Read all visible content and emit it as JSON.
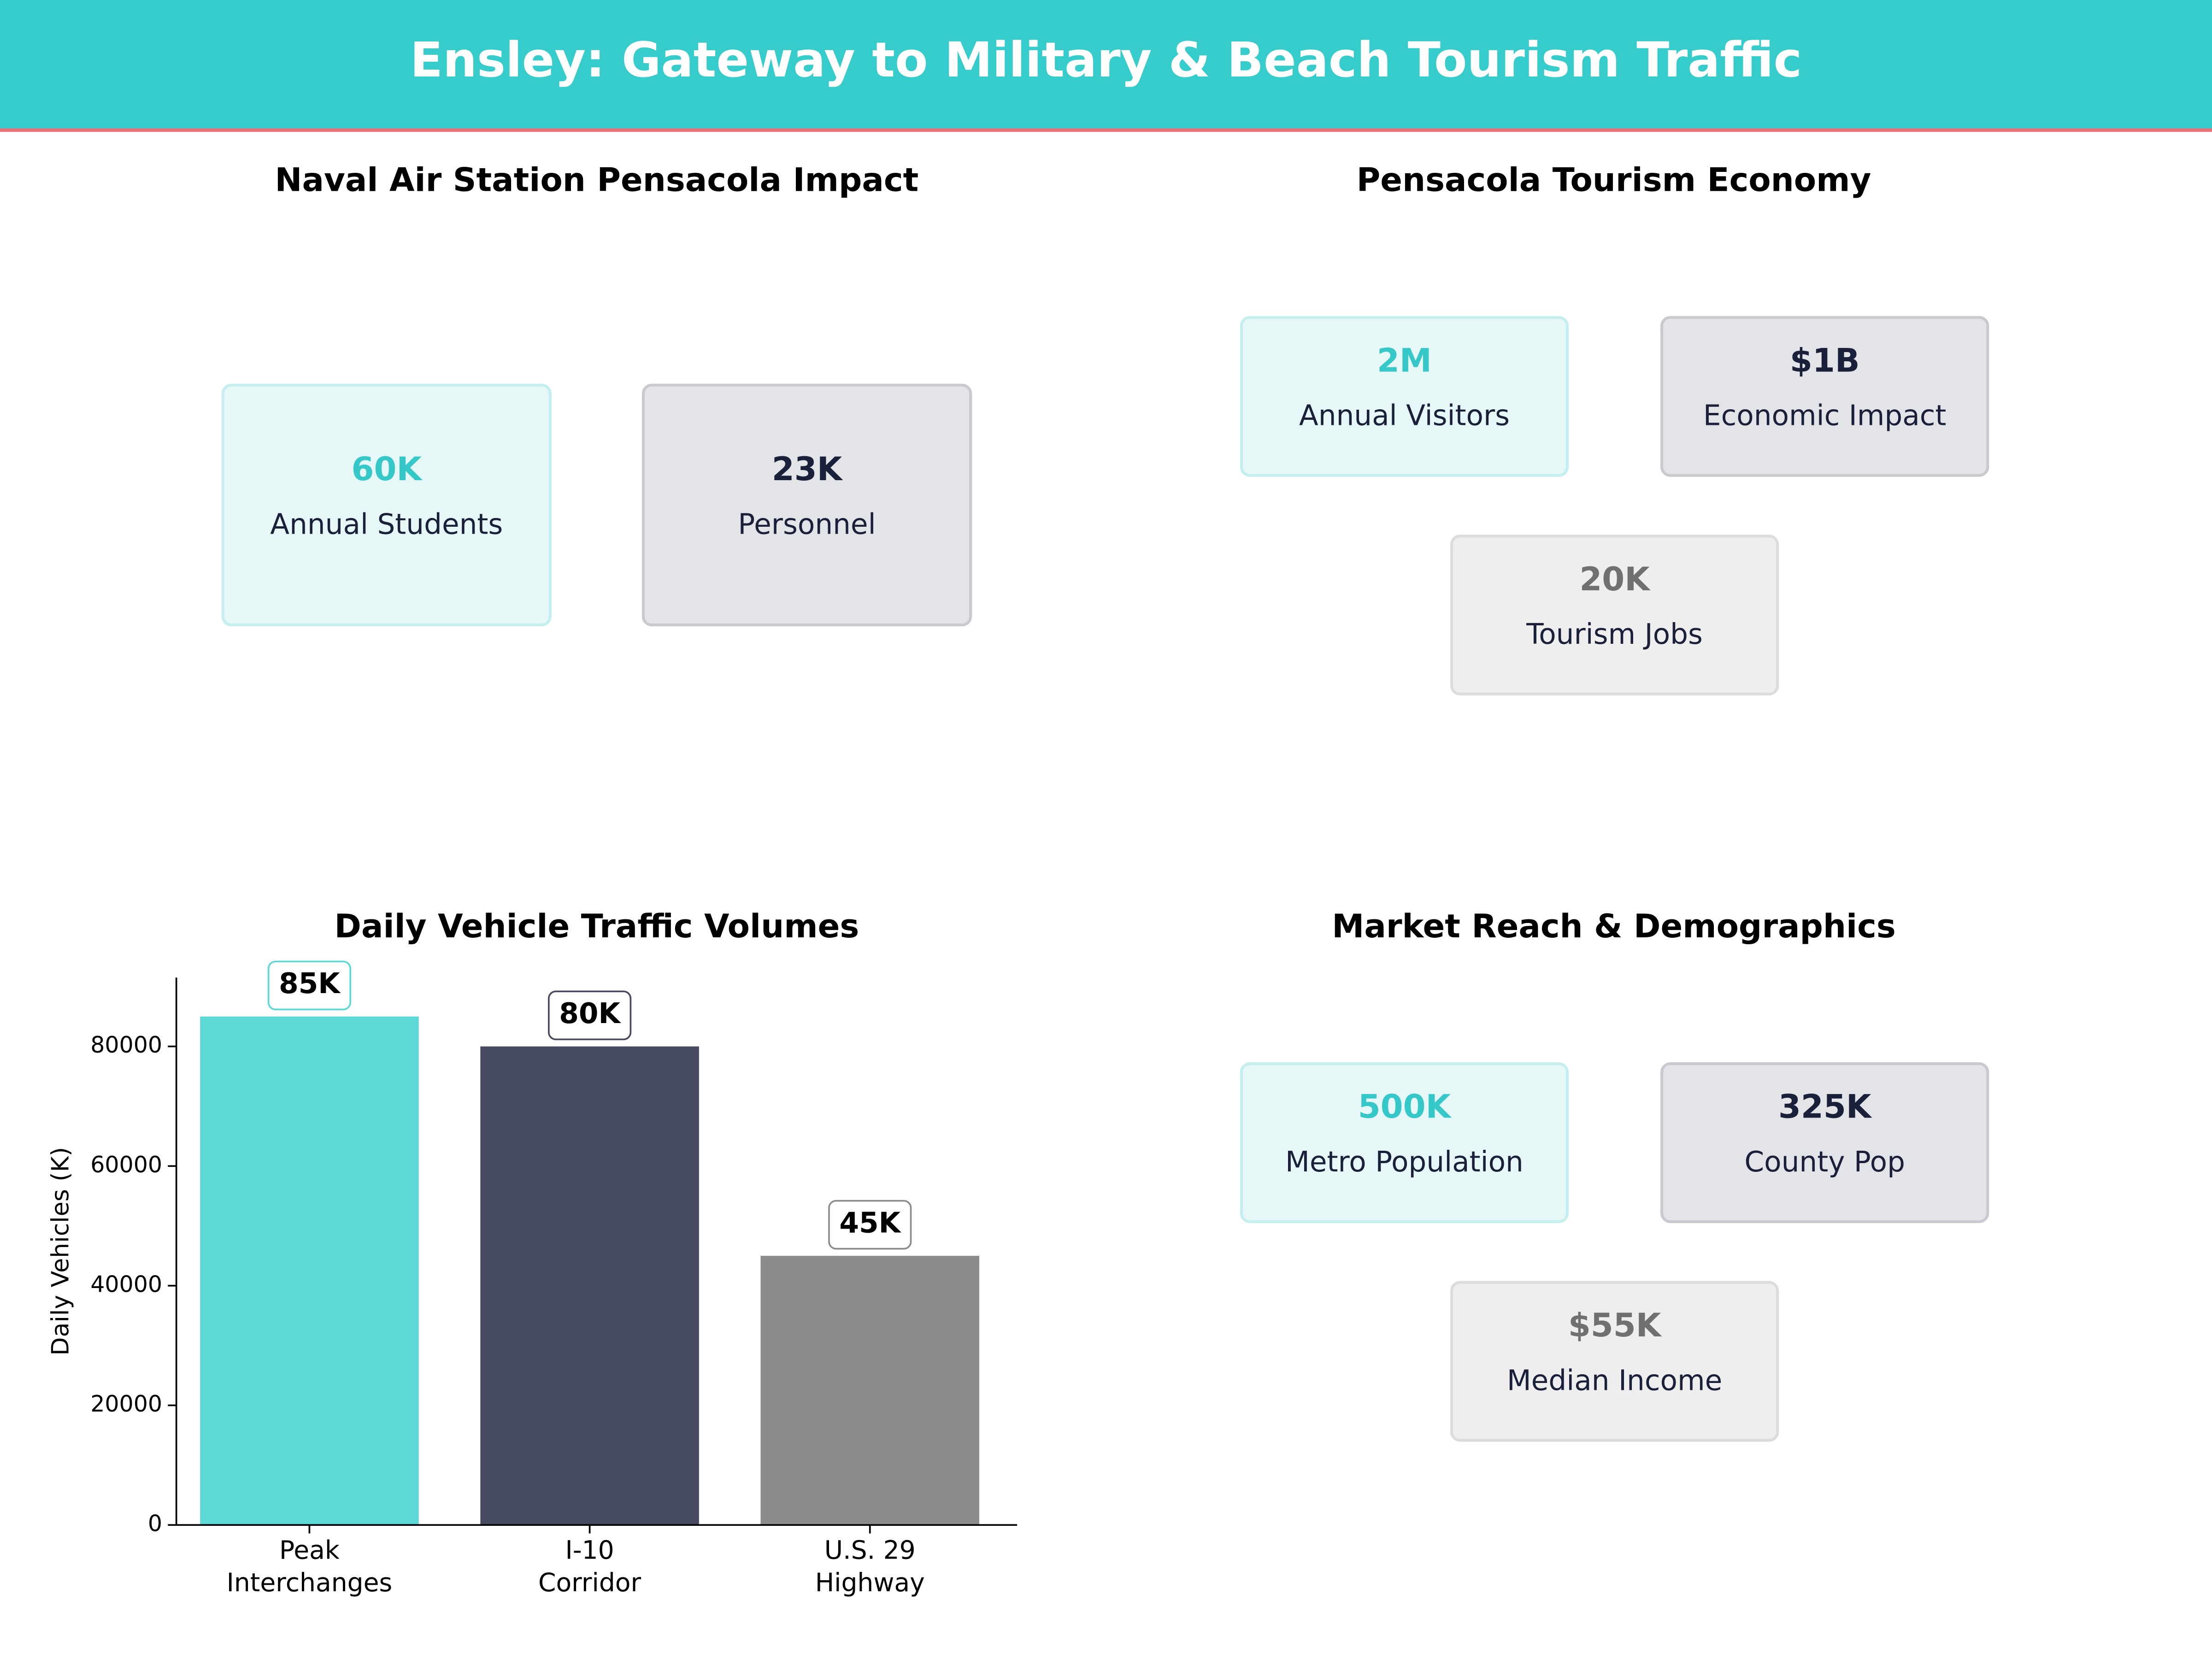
{
  "header": {
    "title": "Ensley: Gateway to Military & Beach Tourism Traffic"
  },
  "panels": [
    {
      "title": "Naval Air Station Pensacola Impact",
      "cards": [
        {
          "value": "60K",
          "label": "Annual Students"
        },
        {
          "value": "23K",
          "label": "Personnel"
        }
      ]
    },
    {
      "title": "Pensacola Tourism Economy",
      "cards": [
        {
          "value": "2M",
          "label": "Annual Visitors"
        },
        {
          "value": "$1B",
          "label": "Economic Impact"
        },
        {
          "value": "20K",
          "label": "Tourism Jobs"
        }
      ]
    },
    {
      "title": "Market Reach & Demographics",
      "cards": [
        {
          "value": "500K",
          "label": "Metro Population"
        },
        {
          "value": "325K",
          "label": "County Pop"
        },
        {
          "value": "$55K",
          "label": "Median Income"
        }
      ]
    }
  ],
  "chart_data": {
    "type": "bar",
    "title": "Daily Vehicle Traffic Volumes",
    "ylabel": "Daily Vehicles (K)",
    "categories": [
      "Peak\nInterchanges",
      "I-10\nCorridor",
      "U.S. 29\nHighway"
    ],
    "values": [
      85000,
      80000,
      45000
    ],
    "value_labels": [
      "85K",
      "80K",
      "45K"
    ],
    "colors": [
      "#5dd8d6",
      "#464b60",
      "#8c8c8c"
    ],
    "ylim": [
      0,
      91500
    ],
    "yticks": [
      0,
      20000,
      40000,
      60000,
      80000
    ]
  }
}
